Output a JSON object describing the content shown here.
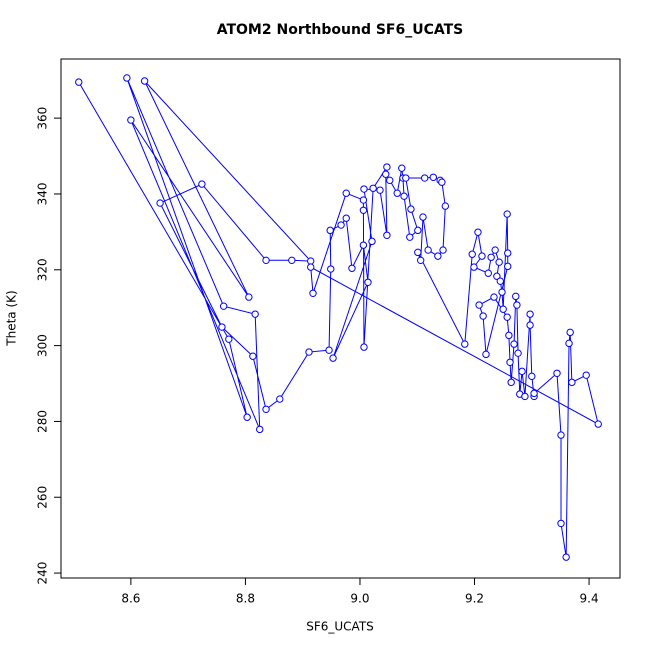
{
  "chart_data": {
    "type": "line",
    "title": "ATOM2 Northbound SF6_UCATS",
    "xlabel": "SF6_UCATS",
    "ylabel": "Theta (K)",
    "color": "#0000ff",
    "x": [
      8.509,
      8.771,
      8.803,
      8.593,
      8.762,
      8.817,
      8.825,
      8.6,
      8.806,
      8.624,
      8.914,
      8.881,
      8.836,
      8.724,
      8.651,
      8.759,
      8.813,
      8.836,
      8.86,
      8.911,
      8.946,
      8.949,
      8.948,
      8.967,
      8.976,
      8.986,
      9.006,
      9.014,
      8.953,
      9.021,
      9.007,
      9.035,
      9.047,
      9.045,
      9.052,
      9.065,
      9.073,
      9.075,
      9.077,
      9.087,
      9.101,
      9.089,
      9.08,
      9.113,
      9.128,
      9.14,
      9.143,
      9.149,
      9.145,
      9.136,
      9.119,
      9.11,
      9.106,
      9.101,
      9.183,
      9.196,
      9.206,
      9.213,
      9.199,
      9.224,
      9.229,
      9.236,
      9.243,
      9.239,
      9.245,
      9.248,
      9.25,
      9.257,
      9.258,
      9.258,
      9.22,
      9.215,
      9.208,
      9.234,
      9.257,
      9.26,
      9.262,
      9.264,
      9.269,
      9.272,
      9.274,
      9.276,
      9.279,
      9.283,
      9.288,
      9.297,
      9.297,
      9.3,
      9.304,
      9.304,
      9.344,
      9.351,
      9.351,
      9.36,
      9.365,
      9.367,
      9.37,
      9.395,
      9.416,
      8.914,
      8.918,
      8.976,
      9.006,
      9.006,
      9.007,
      9.023,
      9.047
    ],
    "values": [
      369.5,
      301.7,
      281.1,
      370.6,
      310.4,
      308.3,
      277.9,
      359.5,
      312.8,
      369.8,
      322.3,
      322.5,
      322.5,
      342.6,
      337.6,
      304.9,
      297.2,
      283.2,
      285.9,
      298.3,
      298.8,
      320.2,
      330.4,
      331.8,
      333.6,
      320.4,
      326.5,
      316.7,
      296.7,
      327.5,
      341.3,
      341.0,
      329.1,
      345.2,
      343.6,
      340.2,
      346.8,
      344.2,
      339.4,
      328.6,
      330.4,
      336.0,
      344.2,
      344.2,
      344.4,
      343.6,
      343.1,
      336.8,
      325.2,
      323.6,
      325.2,
      333.9,
      322.5,
      324.6,
      300.4,
      324.1,
      329.9,
      323.6,
      320.7,
      319.1,
      323.3,
      325.2,
      322.0,
      318.3,
      317.0,
      314.1,
      309.6,
      334.7,
      324.4,
      320.9,
      297.7,
      307.8,
      310.7,
      312.8,
      307.5,
      302.7,
      295.6,
      290.3,
      300.4,
      313.0,
      310.7,
      298.0,
      287.2,
      293.2,
      286.6,
      308.3,
      305.4,
      291.9,
      286.6,
      287.4,
      292.7,
      276.4,
      253.1,
      244.2,
      300.6,
      303.5,
      290.3,
      292.2,
      279.3,
      320.7,
      313.8,
      340.2,
      338.4,
      335.7,
      299.6,
      341.5,
      347.1
    ],
    "xlim": [
      8.478,
      9.454
    ],
    "ylim": [
      238.7,
      375.6
    ],
    "xticks": [
      8.6,
      8.8,
      {
        "value": 9,
        "label": "9.0"
      },
      9.2,
      9.4
    ],
    "yticks": [
      240,
      260,
      280,
      300,
      320,
      340,
      360
    ]
  }
}
